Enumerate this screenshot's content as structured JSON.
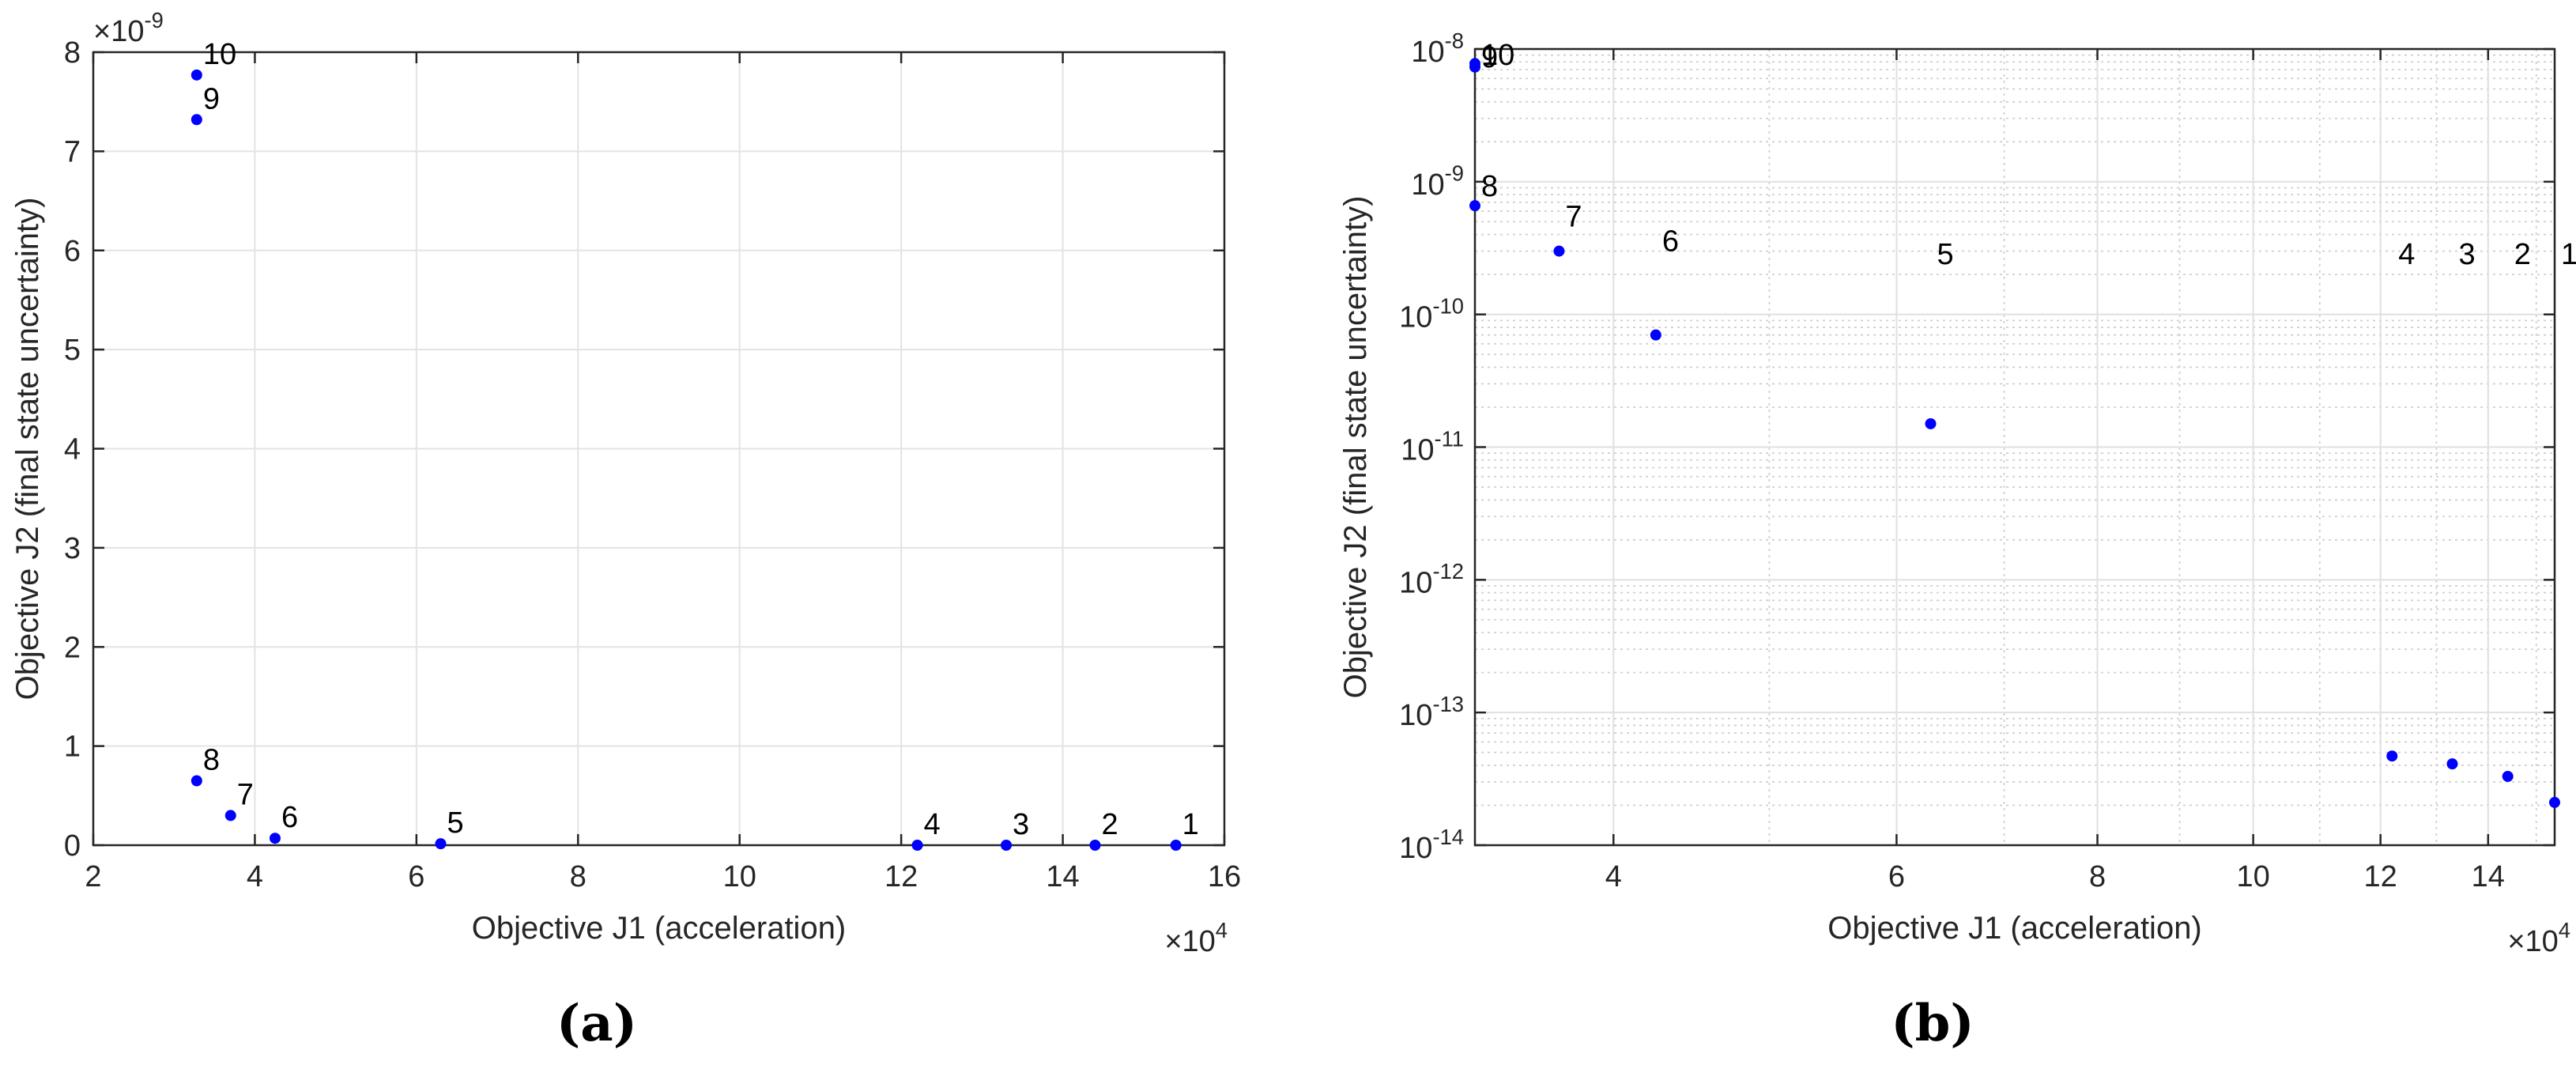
{
  "figure": {
    "captions": [
      "(a)",
      "(b)"
    ]
  },
  "chart_data": [
    {
      "type": "scatter",
      "xlabel": "Objective J1 (acceleration)",
      "ylabel": "Objective J2 (final state uncertainty)",
      "x_multiplier": "×10^4",
      "y_multiplier": "×10^-9",
      "xlim": [
        2,
        16
      ],
      "ylim": [
        0,
        8
      ],
      "xticks": [
        2,
        4,
        6,
        8,
        10,
        12,
        14,
        16
      ],
      "yticks": [
        0,
        1,
        2,
        3,
        4,
        5,
        6,
        7,
        8
      ],
      "grid": true,
      "marker_color": "#0000ff",
      "points": [
        {
          "label": "1",
          "x": 15.4,
          "y": 0.0
        },
        {
          "label": "2",
          "x": 14.4,
          "y": 0.0
        },
        {
          "label": "3",
          "x": 13.3,
          "y": 0.0
        },
        {
          "label": "4",
          "x": 12.2,
          "y": 0.0
        },
        {
          "label": "5",
          "x": 6.3,
          "y": 0.015
        },
        {
          "label": "6",
          "x": 4.25,
          "y": 0.07
        },
        {
          "label": "7",
          "x": 3.7,
          "y": 0.3
        },
        {
          "label": "8",
          "x": 3.28,
          "y": 0.65
        },
        {
          "label": "9",
          "x": 3.28,
          "y": 7.32
        },
        {
          "label": "10",
          "x": 3.28,
          "y": 7.77
        }
      ]
    },
    {
      "type": "scatter",
      "xscale": "log",
      "yscale": "log",
      "xlabel": "Objective J1 (acceleration)",
      "ylabel": "Objective J2 (final state uncertainty)",
      "x_multiplier": "×10^4",
      "xlim": [
        3.28,
        15.4
      ],
      "ylim": [
        1e-14,
        1e-08
      ],
      "xticks": [
        4,
        6,
        8,
        10,
        12,
        14
      ],
      "yticks": [
        {
          "value": 1e-08,
          "label": "10^-8"
        },
        {
          "value": 1e-09,
          "label": "10^-9"
        },
        {
          "value": 1e-10,
          "label": "10^-10"
        },
        {
          "value": 1e-11,
          "label": "10^-11"
        },
        {
          "value": 1e-12,
          "label": "10^-12"
        },
        {
          "value": 1e-13,
          "label": "10^-13"
        },
        {
          "value": 1e-14,
          "label": "10^-14"
        }
      ],
      "grid": true,
      "marker_color": "#0000ff",
      "points": [
        {
          "label": "1",
          "x": 15.4,
          "y": 2.1e-14,
          "label_y": 2.4e-10
        },
        {
          "label": "2",
          "x": 14.4,
          "y": 3.3e-14,
          "label_y": 2.4e-10
        },
        {
          "label": "3",
          "x": 13.3,
          "y": 4.1e-14,
          "label_y": 2.4e-10
        },
        {
          "label": "4",
          "x": 12.2,
          "y": 4.7e-14,
          "label_y": 2.4e-10
        },
        {
          "label": "5",
          "x": 6.3,
          "y": 1.5e-11,
          "label_y": 2.4e-10
        },
        {
          "label": "6",
          "x": 4.25,
          "y": 7e-11,
          "label_y": 3e-10
        },
        {
          "label": "7",
          "x": 3.7,
          "y": 3e-10,
          "label_y": 4.6e-10
        },
        {
          "label": "8",
          "x": 3.28,
          "y": 6.6e-10,
          "label_y": 7.8e-10
        },
        {
          "label": "9",
          "x": 3.28,
          "y": 7.32e-09,
          "label_y": 7.3e-09
        },
        {
          "label": "10",
          "x": 3.28,
          "y": 7.77e-09,
          "label_y": 7.6e-09
        }
      ]
    }
  ]
}
